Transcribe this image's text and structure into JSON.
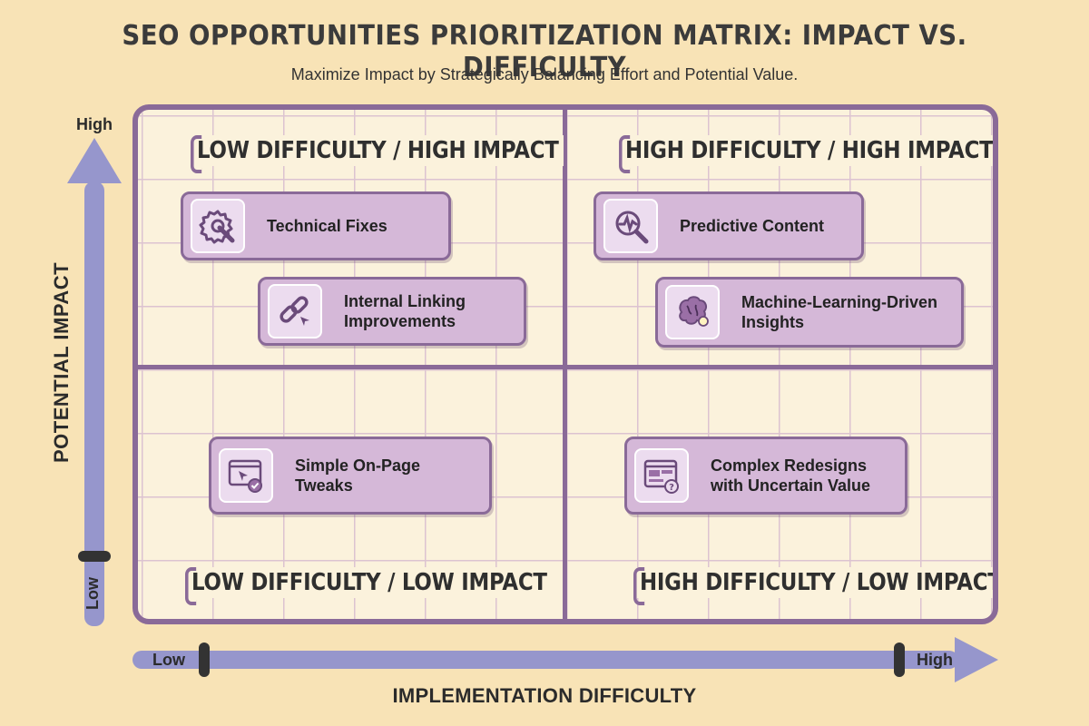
{
  "title": "SEO OPPORTUNITIES PRIORITIZATION MATRIX: IMPACT VS. DIFFICULTY",
  "subtitle": "Maximize Impact by Strategically Balancing Effort and Potential Value.",
  "quadrants": {
    "top_left": "LOW DIFFICULTY / HIGH IMPACT",
    "top_right": "HIGH DIFFICULTY / HIGH IMPACT",
    "bottom_left": "LOW DIFFICULTY / LOW IMPACT",
    "bottom_right": "HIGH DIFFICULTY / LOW IMPACT"
  },
  "cards": [
    {
      "line1": "Technical Fixes",
      "line2": "",
      "icon": "gear-wrench-icon"
    },
    {
      "line1": "Internal Linking",
      "line2": "Improvements",
      "icon": "chain-link-icon"
    },
    {
      "line1": "Predictive Content",
      "line2": "",
      "icon": "magnifier-chart-icon"
    },
    {
      "line1": "Machine-Learning-Driven",
      "line2": "Insights",
      "icon": "brain-lightbulb-icon"
    },
    {
      "line1": "Simple On-Page",
      "line2": "Tweaks",
      "icon": "browser-cursor-check-icon"
    },
    {
      "line1": "Complex Redesigns",
      "line2": "with Uncertain Value",
      "icon": "layout-question-icon"
    }
  ],
  "axes": {
    "y_title": "POTENTIAL IMPACT",
    "y_high": "High",
    "y_low": "Low",
    "x_title": "IMPLEMENTATION DIFFICULTY",
    "x_low": "Low",
    "x_high": "High"
  },
  "colors": {
    "background": "#f8e3b6",
    "frame": "#8a6a98",
    "card": "#d5b8d8",
    "axis": "#9696cc"
  }
}
